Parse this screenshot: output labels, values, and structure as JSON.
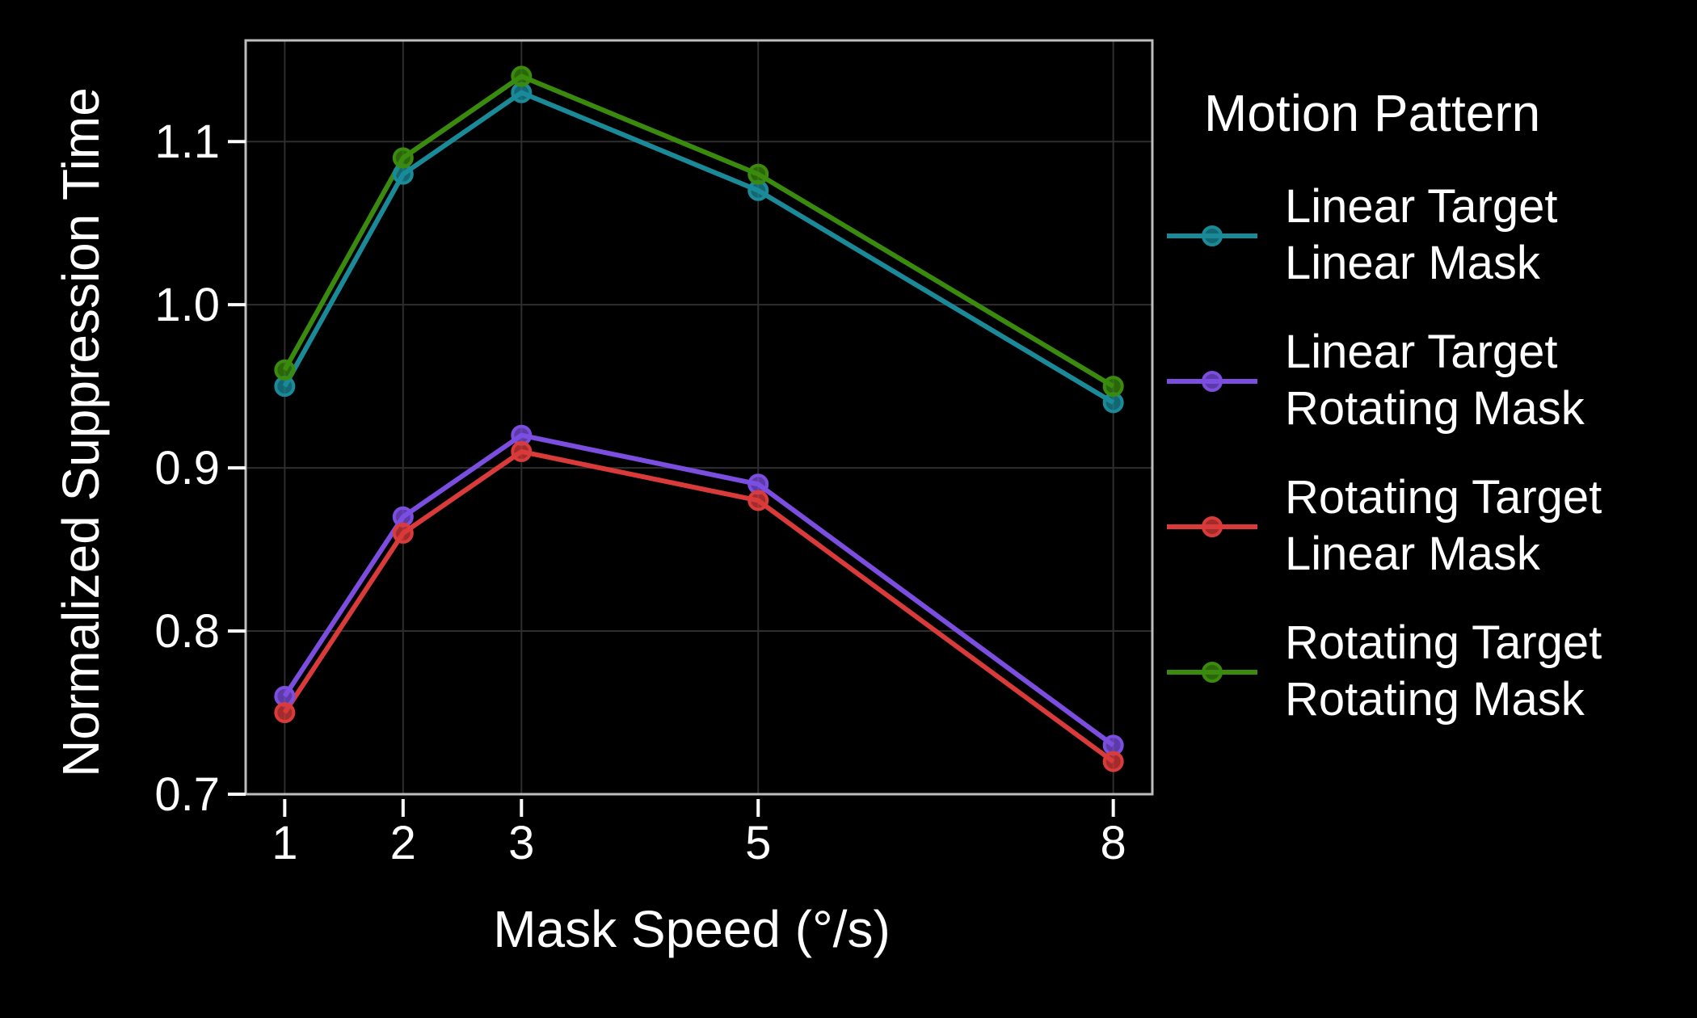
{
  "chart_data": {
    "type": "line",
    "title": "",
    "xlabel": "Mask Speed (°/s)",
    "ylabel": "Normalized Suppression Time",
    "x": [
      1,
      2,
      3,
      5,
      8
    ],
    "x_tick_labels": [
      "1",
      "2",
      "3",
      "5",
      "8"
    ],
    "xlim": [
      0.67,
      8.33
    ],
    "y_ticks": [
      0.7,
      0.8,
      0.9,
      1.0,
      1.1
    ],
    "y_tick_labels": [
      "0.7",
      "0.8",
      "0.9",
      "1.0",
      "1.1"
    ],
    "ylim": [
      0.7,
      1.162
    ],
    "grid": true,
    "legend_title": "Motion Pattern",
    "legend_position": "right",
    "series": [
      {
        "name_line1": "Linear Target",
        "name_line2": "Linear Mask",
        "color": "#1a8a99",
        "values": [
          0.95,
          1.08,
          1.13,
          1.07,
          0.94
        ]
      },
      {
        "name_line1": "Linear Target",
        "name_line2": "Rotating Mask",
        "color": "#7b4ee0",
        "values": [
          0.76,
          0.87,
          0.92,
          0.89,
          0.73
        ]
      },
      {
        "name_line1": "Rotating Target",
        "name_line2": "Linear Mask",
        "color": "#d93a3a",
        "values": [
          0.75,
          0.86,
          0.91,
          0.88,
          0.72
        ]
      },
      {
        "name_line1": "Rotating Target",
        "name_line2": "Rotating Mask",
        "color": "#3a8a0e",
        "values": [
          0.96,
          1.09,
          1.14,
          1.08,
          0.95
        ]
      }
    ]
  }
}
